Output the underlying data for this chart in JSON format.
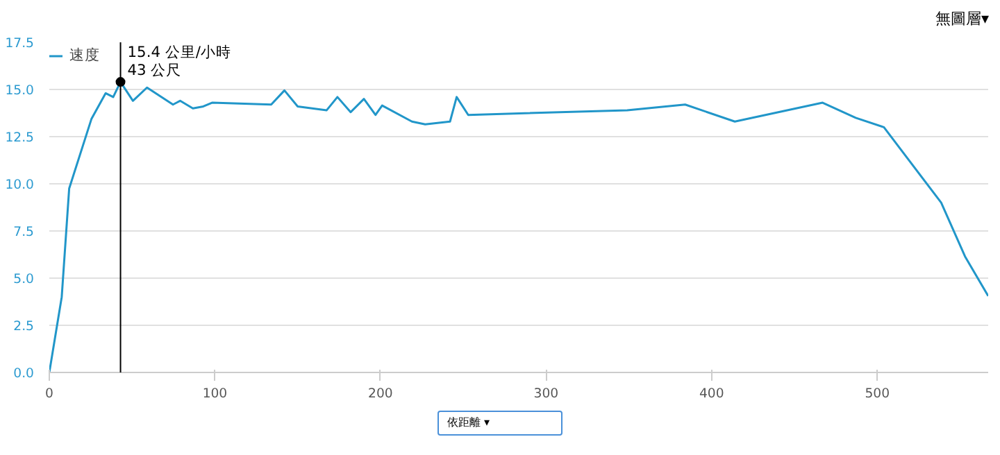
{
  "chart_data": {
    "type": "line",
    "x": [
      0,
      7.5,
      12,
      25.5,
      34,
      38.6,
      43,
      50.5,
      59,
      74.7,
      79,
      86.7,
      93,
      98.3,
      134,
      142,
      150,
      167.5,
      174,
      182,
      190,
      197,
      201,
      219,
      227,
      242,
      246,
      253,
      349,
      384,
      414,
      467,
      487,
      504,
      538.6,
      553,
      567
    ],
    "series": [
      {
        "name": "速度",
        "color": "#2196c9",
        "values": [
          0,
          4.0,
          9.75,
          13.45,
          14.8,
          14.6,
          15.4,
          14.4,
          15.1,
          14.2,
          14.4,
          14.0,
          14.1,
          14.3,
          14.2,
          14.95,
          14.1,
          13.9,
          14.6,
          13.8,
          14.5,
          13.65,
          14.15,
          13.3,
          13.15,
          13.3,
          14.6,
          13.65,
          13.9,
          14.2,
          13.3,
          14.3,
          13.5,
          13.0,
          9.0,
          6.15,
          4.05
        ]
      }
    ],
    "xlim": [
      0,
      567
    ],
    "ylim": [
      0,
      17.5
    ],
    "xticks": [
      0,
      100,
      200,
      300,
      400,
      500
    ],
    "yticks": [
      {
        "value": 0,
        "label": "0.0"
      },
      {
        "value": 2.5,
        "label": "2.5"
      },
      {
        "value": 5,
        "label": "5.0"
      },
      {
        "value": 7.5,
        "label": "7.5"
      },
      {
        "value": 10,
        "label": "10.0"
      },
      {
        "value": 12.5,
        "label": "12.5"
      },
      {
        "value": 15,
        "label": "15.0"
      },
      {
        "value": 17.5,
        "label": "17.5"
      }
    ],
    "grid": "y",
    "legend": "top left",
    "marker": "none",
    "line_style": "solid",
    "ref_lines": [
      {
        "axis": "x",
        "value": 43,
        "color": "#000000"
      }
    ],
    "annotations": [
      {
        "text": "15.4 公里/小時",
        "x": 43,
        "y": 15.4
      },
      {
        "text": "43 公尺",
        "x": 43,
        "y": 15.4
      },
      "無圖層▾",
      "依距離 ▾"
    ]
  }
}
